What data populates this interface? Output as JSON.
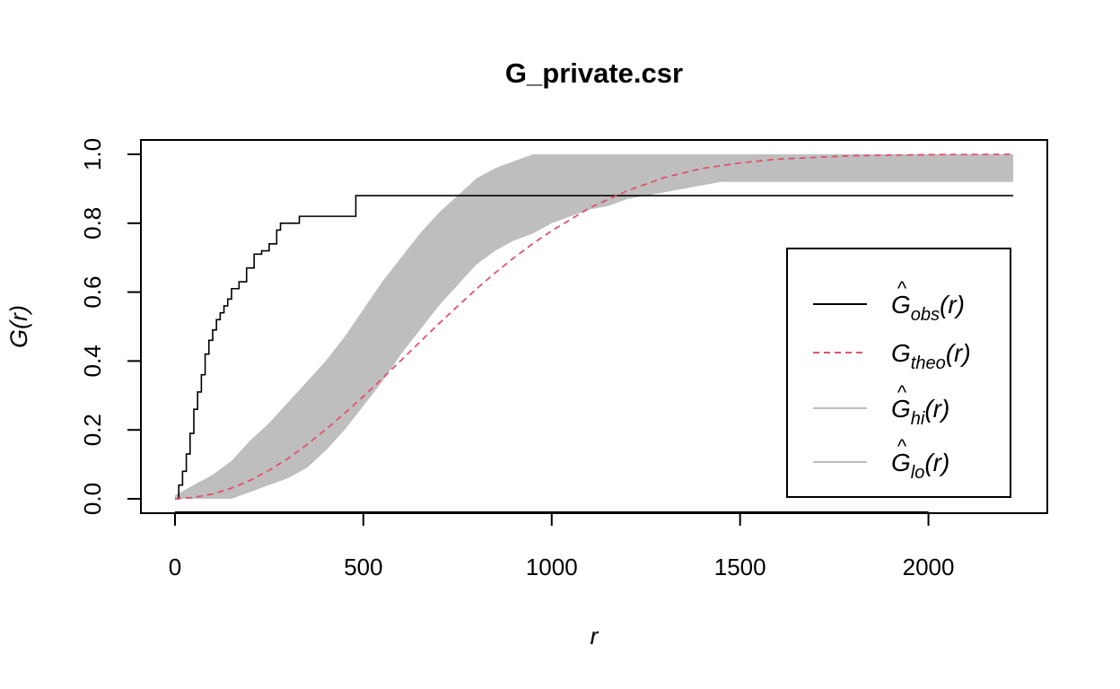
{
  "chart_data": {
    "type": "line",
    "title": "G_private.csr",
    "xlabel": "r",
    "ylabel": "G(r)",
    "xlim": [
      0,
      2225
    ],
    "ylim": [
      0,
      1
    ],
    "x_ticks": [
      0,
      500,
      1000,
      1500,
      2000
    ],
    "y_ticks": [
      0.0,
      0.2,
      0.4,
      0.6,
      0.8,
      1.0
    ],
    "x_tick_labels": [
      "0",
      "500",
      "1000",
      "1500",
      "2000"
    ],
    "y_tick_labels": [
      "0.0",
      "0.2",
      "0.4",
      "0.6",
      "0.8",
      "1.0"
    ],
    "grid": false,
    "legend_position": "right",
    "envelope": {
      "x": [
        0,
        50,
        100,
        150,
        200,
        250,
        300,
        350,
        400,
        450,
        500,
        550,
        600,
        650,
        700,
        750,
        800,
        850,
        900,
        950,
        1000,
        1050,
        1100,
        1150,
        1200,
        1250,
        1300,
        1350,
        1400,
        1450,
        1500,
        2225
      ],
      "hi": [
        0.01,
        0.04,
        0.07,
        0.11,
        0.17,
        0.22,
        0.28,
        0.34,
        0.4,
        0.47,
        0.55,
        0.63,
        0.7,
        0.77,
        0.83,
        0.88,
        0.93,
        0.96,
        0.98,
        1.0,
        1.0,
        1.0,
        1.0,
        1.0,
        1.0,
        1.0,
        1.0,
        1.0,
        1.0,
        1.0,
        1.0,
        1.0
      ],
      "lo": [
        0.0,
        0.0,
        0.0,
        0.0,
        0.02,
        0.04,
        0.06,
        0.09,
        0.14,
        0.2,
        0.27,
        0.34,
        0.42,
        0.49,
        0.56,
        0.62,
        0.68,
        0.72,
        0.75,
        0.77,
        0.8,
        0.82,
        0.84,
        0.85,
        0.87,
        0.88,
        0.89,
        0.9,
        0.91,
        0.92,
        0.92,
        0.92
      ]
    },
    "series": [
      {
        "name": "obs",
        "color": "#000000",
        "dash": "solid",
        "step": true,
        "x": [
          0,
          10,
          20,
          30,
          40,
          50,
          60,
          70,
          80,
          90,
          100,
          110,
          120,
          130,
          140,
          150,
          170,
          190,
          210,
          230,
          250,
          270,
          280,
          290,
          330,
          400,
          470,
          480,
          2225
        ],
        "y": [
          0.0,
          0.04,
          0.08,
          0.13,
          0.19,
          0.26,
          0.31,
          0.36,
          0.42,
          0.46,
          0.49,
          0.52,
          0.54,
          0.56,
          0.58,
          0.61,
          0.63,
          0.67,
          0.71,
          0.72,
          0.74,
          0.78,
          0.8,
          0.8,
          0.82,
          0.82,
          0.82,
          0.88,
          0.88
        ]
      },
      {
        "name": "theo",
        "color": "#DF536B",
        "dash": "dashed",
        "step": false,
        "x": [
          0,
          50,
          100,
          150,
          200,
          250,
          300,
          350,
          400,
          450,
          500,
          550,
          600,
          650,
          700,
          750,
          800,
          850,
          900,
          950,
          1000,
          1100,
          1200,
          1300,
          1400,
          1500,
          1600,
          1800,
          2000,
          2225
        ],
        "y": [
          0.0,
          0.004,
          0.014,
          0.031,
          0.054,
          0.083,
          0.117,
          0.157,
          0.201,
          0.248,
          0.297,
          0.349,
          0.402,
          0.455,
          0.508,
          0.559,
          0.609,
          0.656,
          0.7,
          0.741,
          0.778,
          0.844,
          0.894,
          0.933,
          0.959,
          0.975,
          0.986,
          0.996,
          0.999,
          1.0
        ]
      }
    ],
    "legend": [
      {
        "base": "G",
        "hat": true,
        "sub": "obs",
        "suffix": "(r)",
        "color": "#000000",
        "dash": "solid"
      },
      {
        "base": "G",
        "hat": false,
        "sub": "theo",
        "suffix": "(r)",
        "color": "#DF536B",
        "dash": "dashed"
      },
      {
        "base": "G",
        "hat": true,
        "sub": "hi",
        "suffix": "(r)",
        "color": "#BEBEBE",
        "dash": "solid"
      },
      {
        "base": "G",
        "hat": true,
        "sub": "lo",
        "suffix": "(r)",
        "color": "#BEBEBE",
        "dash": "solid"
      }
    ],
    "envelope_color": "#BEBEBE"
  }
}
